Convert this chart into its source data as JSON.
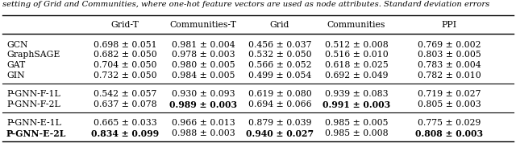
{
  "caption": "setting of Grid and Communities, where one-hot feature vectors are used as node attributes. Standard deviation errors",
  "col_headers": [
    "Grid-T",
    "Communities-T",
    "Grid",
    "Communities",
    "PPI"
  ],
  "rows": [
    {
      "method": "GCN",
      "values": [
        "0.698 ± 0.051",
        "0.981 ± 0.004",
        "0.456 ± 0.037",
        "0.512 ± 0.008",
        "0.769 ± 0.002"
      ],
      "bold_vals": [
        false,
        false,
        false,
        false,
        false
      ],
      "bold_method": false
    },
    {
      "method": "GraphSAGE",
      "values": [
        "0.682 ± 0.050",
        "0.978 ± 0.003",
        "0.532 ± 0.050",
        "0.516 ± 0.010",
        "0.803 ± 0.005"
      ],
      "bold_vals": [
        false,
        false,
        false,
        false,
        false
      ],
      "bold_method": false
    },
    {
      "method": "GAT",
      "values": [
        "0.704 ± 0.050",
        "0.980 ± 0.005",
        "0.566 ± 0.052",
        "0.618 ± 0.025",
        "0.783 ± 0.004"
      ],
      "bold_vals": [
        false,
        false,
        false,
        false,
        false
      ],
      "bold_method": false
    },
    {
      "method": "GIN",
      "values": [
        "0.732 ± 0.050",
        "0.984 ± 0.005",
        "0.499 ± 0.054",
        "0.692 ± 0.049",
        "0.782 ± 0.010"
      ],
      "bold_vals": [
        false,
        false,
        false,
        false,
        false
      ],
      "bold_method": false
    },
    {
      "method": "P-GNN-F-1L",
      "values": [
        "0.542 ± 0.057",
        "0.930 ± 0.093",
        "0.619 ± 0.080",
        "0.939 ± 0.083",
        "0.719 ± 0.027"
      ],
      "bold_vals": [
        false,
        false,
        false,
        false,
        false
      ],
      "bold_method": false
    },
    {
      "method": "P-GNN-F-2L",
      "values": [
        "0.637 ± 0.078",
        "0.989 ± 0.003",
        "0.694 ± 0.066",
        "0.991 ± 0.003",
        "0.805 ± 0.003"
      ],
      "bold_vals": [
        false,
        true,
        false,
        true,
        false
      ],
      "bold_method": false
    },
    {
      "method": "P-GNN-E-1L",
      "values": [
        "0.665 ± 0.033",
        "0.966 ± 0.013",
        "0.879 ± 0.039",
        "0.985 ± 0.005",
        "0.775 ± 0.029"
      ],
      "bold_vals": [
        false,
        false,
        false,
        false,
        false
      ],
      "bold_method": false
    },
    {
      "method": "P-GNN-E-2L",
      "values": [
        "0.834 ± 0.099",
        "0.988 ± 0.003",
        "0.940 ± 0.027",
        "0.985 ± 0.008",
        "0.808 ± 0.003"
      ],
      "bold_vals": [
        true,
        false,
        true,
        false,
        true
      ],
      "bold_method": true
    }
  ],
  "font_size": 7.8,
  "caption_font_size": 7.2
}
